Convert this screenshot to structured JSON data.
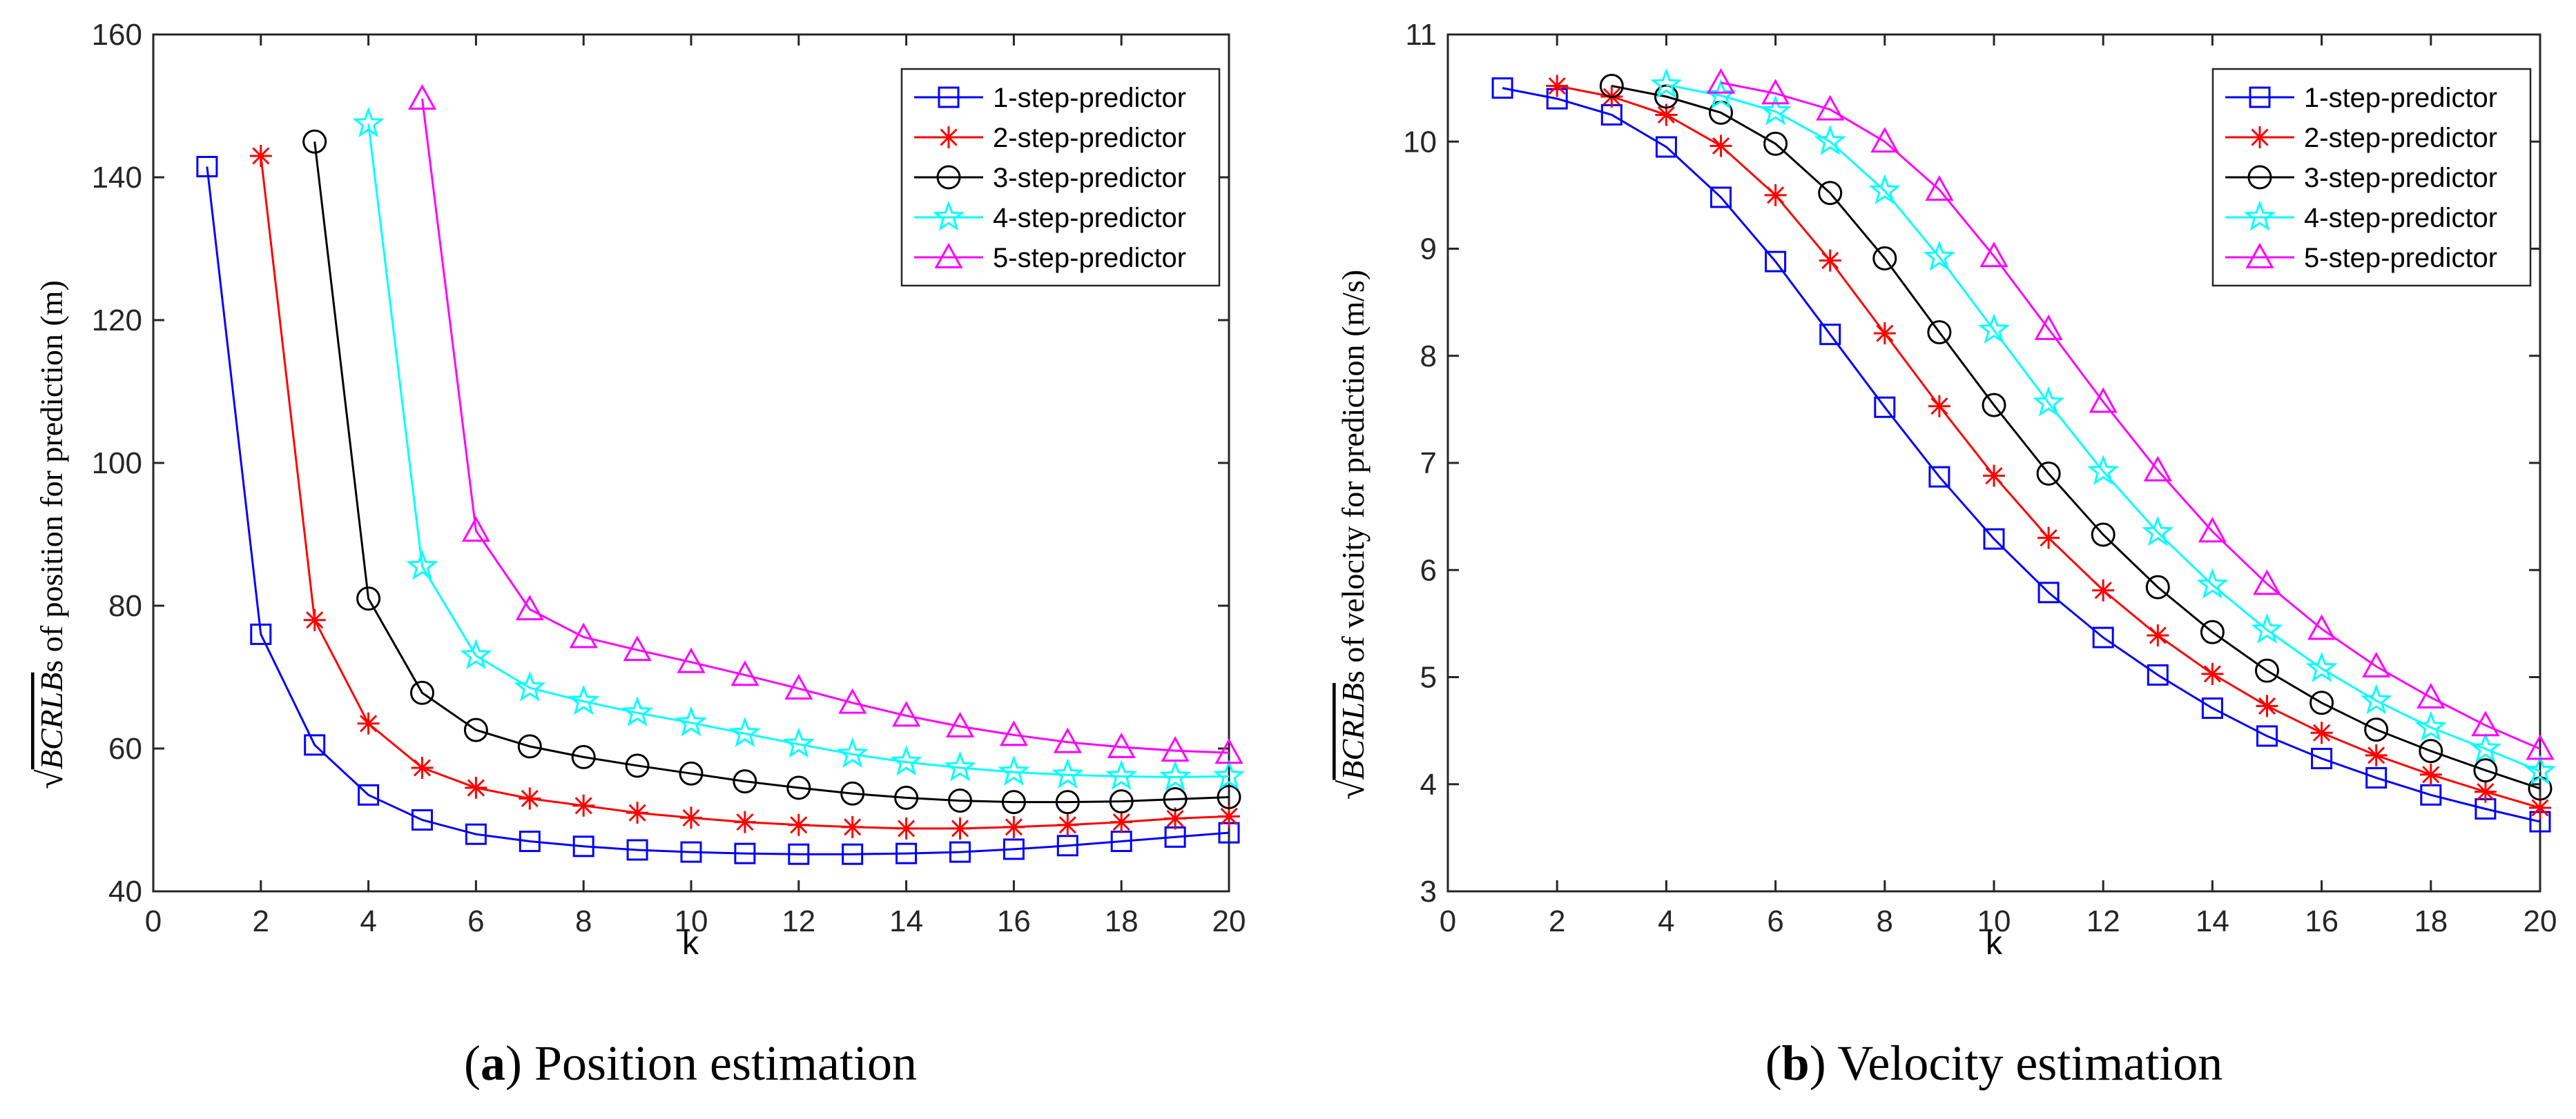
{
  "colors": {
    "series": [
      "#0000ff",
      "#ff0000",
      "#000000",
      "#00ffff",
      "#ff00ff"
    ],
    "axis": "#262626",
    "background": "#ffffff"
  },
  "captions": [
    {
      "label": "a",
      "text": "Position estimation"
    },
    {
      "label": "b",
      "text": "Velocity estimation"
    }
  ],
  "chart_data": [
    {
      "type": "line",
      "panel": "a",
      "title": "",
      "xlabel": "k",
      "ylabel_math": "BCRLB",
      "ylabel_rest": "s of position for prediction (m)",
      "xlim": [
        0,
        20
      ],
      "ylim": [
        40,
        160
      ],
      "xticks": [
        0,
        2,
        4,
        6,
        8,
        10,
        12,
        14,
        16,
        18,
        20
      ],
      "yticks": [
        40,
        60,
        80,
        100,
        120,
        140,
        160
      ],
      "legend_position": "top-right",
      "series": [
        {
          "name": "1-step-predictor",
          "marker": "square",
          "x": [
            1,
            2,
            3,
            4,
            5,
            6,
            7,
            8,
            9,
            10,
            11,
            12,
            13,
            14,
            15,
            16,
            17,
            18,
            19,
            20
          ],
          "values": [
            141.5,
            76,
            60.5,
            53.5,
            50,
            48,
            47,
            46.3,
            45.8,
            45.5,
            45.3,
            45.2,
            45.2,
            45.3,
            45.5,
            45.9,
            46.4,
            47,
            47.6,
            48.2
          ]
        },
        {
          "name": "2-step-predictor",
          "marker": "asterisk",
          "x": [
            2,
            3,
            4,
            5,
            6,
            7,
            8,
            9,
            10,
            11,
            12,
            13,
            14,
            15,
            16,
            17,
            18,
            19,
            20
          ],
          "values": [
            143,
            78,
            63.5,
            57.3,
            54.5,
            53,
            52,
            51,
            50.3,
            49.7,
            49.3,
            49,
            48.8,
            48.8,
            49,
            49.3,
            49.7,
            50.2,
            50.5
          ]
        },
        {
          "name": "3-step-predictor",
          "marker": "circle",
          "x": [
            3,
            4,
            5,
            6,
            7,
            8,
            9,
            10,
            11,
            12,
            13,
            14,
            15,
            16,
            17,
            18,
            19,
            20
          ],
          "values": [
            145,
            81,
            67.8,
            62.6,
            60.3,
            58.8,
            57.6,
            56.5,
            55.4,
            54.5,
            53.7,
            53.1,
            52.7,
            52.5,
            52.5,
            52.6,
            52.9,
            53.2
          ]
        },
        {
          "name": "4-step-predictor",
          "marker": "star",
          "x": [
            4,
            5,
            6,
            7,
            8,
            9,
            10,
            11,
            12,
            13,
            14,
            15,
            16,
            17,
            18,
            19,
            20
          ],
          "values": [
            147.5,
            85.5,
            73,
            68.5,
            66.6,
            65,
            63.6,
            62.1,
            60.6,
            59.2,
            58.1,
            57.3,
            56.7,
            56.3,
            56.1,
            56,
            56.1
          ]
        },
        {
          "name": "5-step-predictor",
          "marker": "triangle",
          "x": [
            5,
            6,
            7,
            8,
            9,
            10,
            11,
            12,
            13,
            14,
            15,
            16,
            17,
            18,
            19,
            20
          ],
          "values": [
            151,
            90.5,
            79.5,
            75.6,
            73.8,
            72.1,
            70.3,
            68.4,
            66.4,
            64.6,
            63.1,
            61.9,
            60.9,
            60.2,
            59.7,
            59.4
          ]
        }
      ]
    },
    {
      "type": "line",
      "panel": "b",
      "title": "",
      "xlabel": "k",
      "ylabel_math": "BCRLB",
      "ylabel_rest": "s of velocity for prediction (m/s)",
      "xlim": [
        0,
        20
      ],
      "ylim": [
        3,
        11
      ],
      "xticks": [
        0,
        2,
        4,
        6,
        8,
        10,
        12,
        14,
        16,
        18,
        20
      ],
      "yticks": [
        3,
        4,
        5,
        6,
        7,
        8,
        9,
        10,
        11
      ],
      "legend_position": "top-right",
      "series": [
        {
          "name": "1-step-predictor",
          "marker": "square",
          "x": [
            1,
            2,
            3,
            4,
            5,
            6,
            7,
            8,
            9,
            10,
            11,
            12,
            13,
            14,
            15,
            16,
            17,
            18,
            19,
            20
          ],
          "values": [
            10.5,
            10.4,
            10.25,
            9.95,
            9.48,
            8.88,
            8.2,
            7.52,
            6.87,
            6.29,
            5.79,
            5.37,
            5.02,
            4.71,
            4.45,
            4.24,
            4.06,
            3.9,
            3.77,
            3.65
          ]
        },
        {
          "name": "2-step-predictor",
          "marker": "asterisk",
          "x": [
            2,
            3,
            4,
            5,
            6,
            7,
            8,
            9,
            10,
            11,
            12,
            13,
            14,
            15,
            16,
            17,
            18,
            19,
            20
          ],
          "values": [
            10.52,
            10.42,
            10.25,
            9.96,
            9.5,
            8.89,
            8.21,
            7.53,
            6.88,
            6.3,
            5.81,
            5.39,
            5.03,
            4.73,
            4.48,
            4.27,
            4.09,
            3.93,
            3.78
          ]
        },
        {
          "name": "3-step-predictor",
          "marker": "circle",
          "x": [
            3,
            4,
            5,
            6,
            7,
            8,
            9,
            10,
            11,
            12,
            13,
            14,
            15,
            16,
            17,
            18,
            19,
            20
          ],
          "values": [
            10.52,
            10.42,
            10.27,
            9.98,
            9.52,
            8.91,
            8.22,
            7.54,
            6.9,
            6.33,
            5.84,
            5.42,
            5.06,
            4.76,
            4.51,
            4.31,
            4.13,
            3.96
          ]
        },
        {
          "name": "4-step-predictor",
          "marker": "star",
          "x": [
            4,
            5,
            6,
            7,
            8,
            9,
            10,
            11,
            12,
            13,
            14,
            15,
            16,
            17,
            18,
            19,
            20
          ],
          "values": [
            10.53,
            10.43,
            10.28,
            10,
            9.54,
            8.92,
            8.24,
            7.56,
            6.92,
            6.35,
            5.86,
            5.44,
            5.08,
            4.78,
            4.53,
            4.33,
            4.12
          ]
        },
        {
          "name": "5-step-predictor",
          "marker": "triangle",
          "x": [
            5,
            6,
            7,
            8,
            9,
            10,
            11,
            12,
            13,
            14,
            15,
            16,
            17,
            18,
            19,
            20
          ],
          "values": [
            10.55,
            10.45,
            10.3,
            10,
            9.55,
            8.93,
            8.25,
            7.57,
            6.93,
            6.36,
            5.87,
            5.45,
            5.1,
            4.81,
            4.55,
            4.33
          ]
        }
      ]
    }
  ]
}
